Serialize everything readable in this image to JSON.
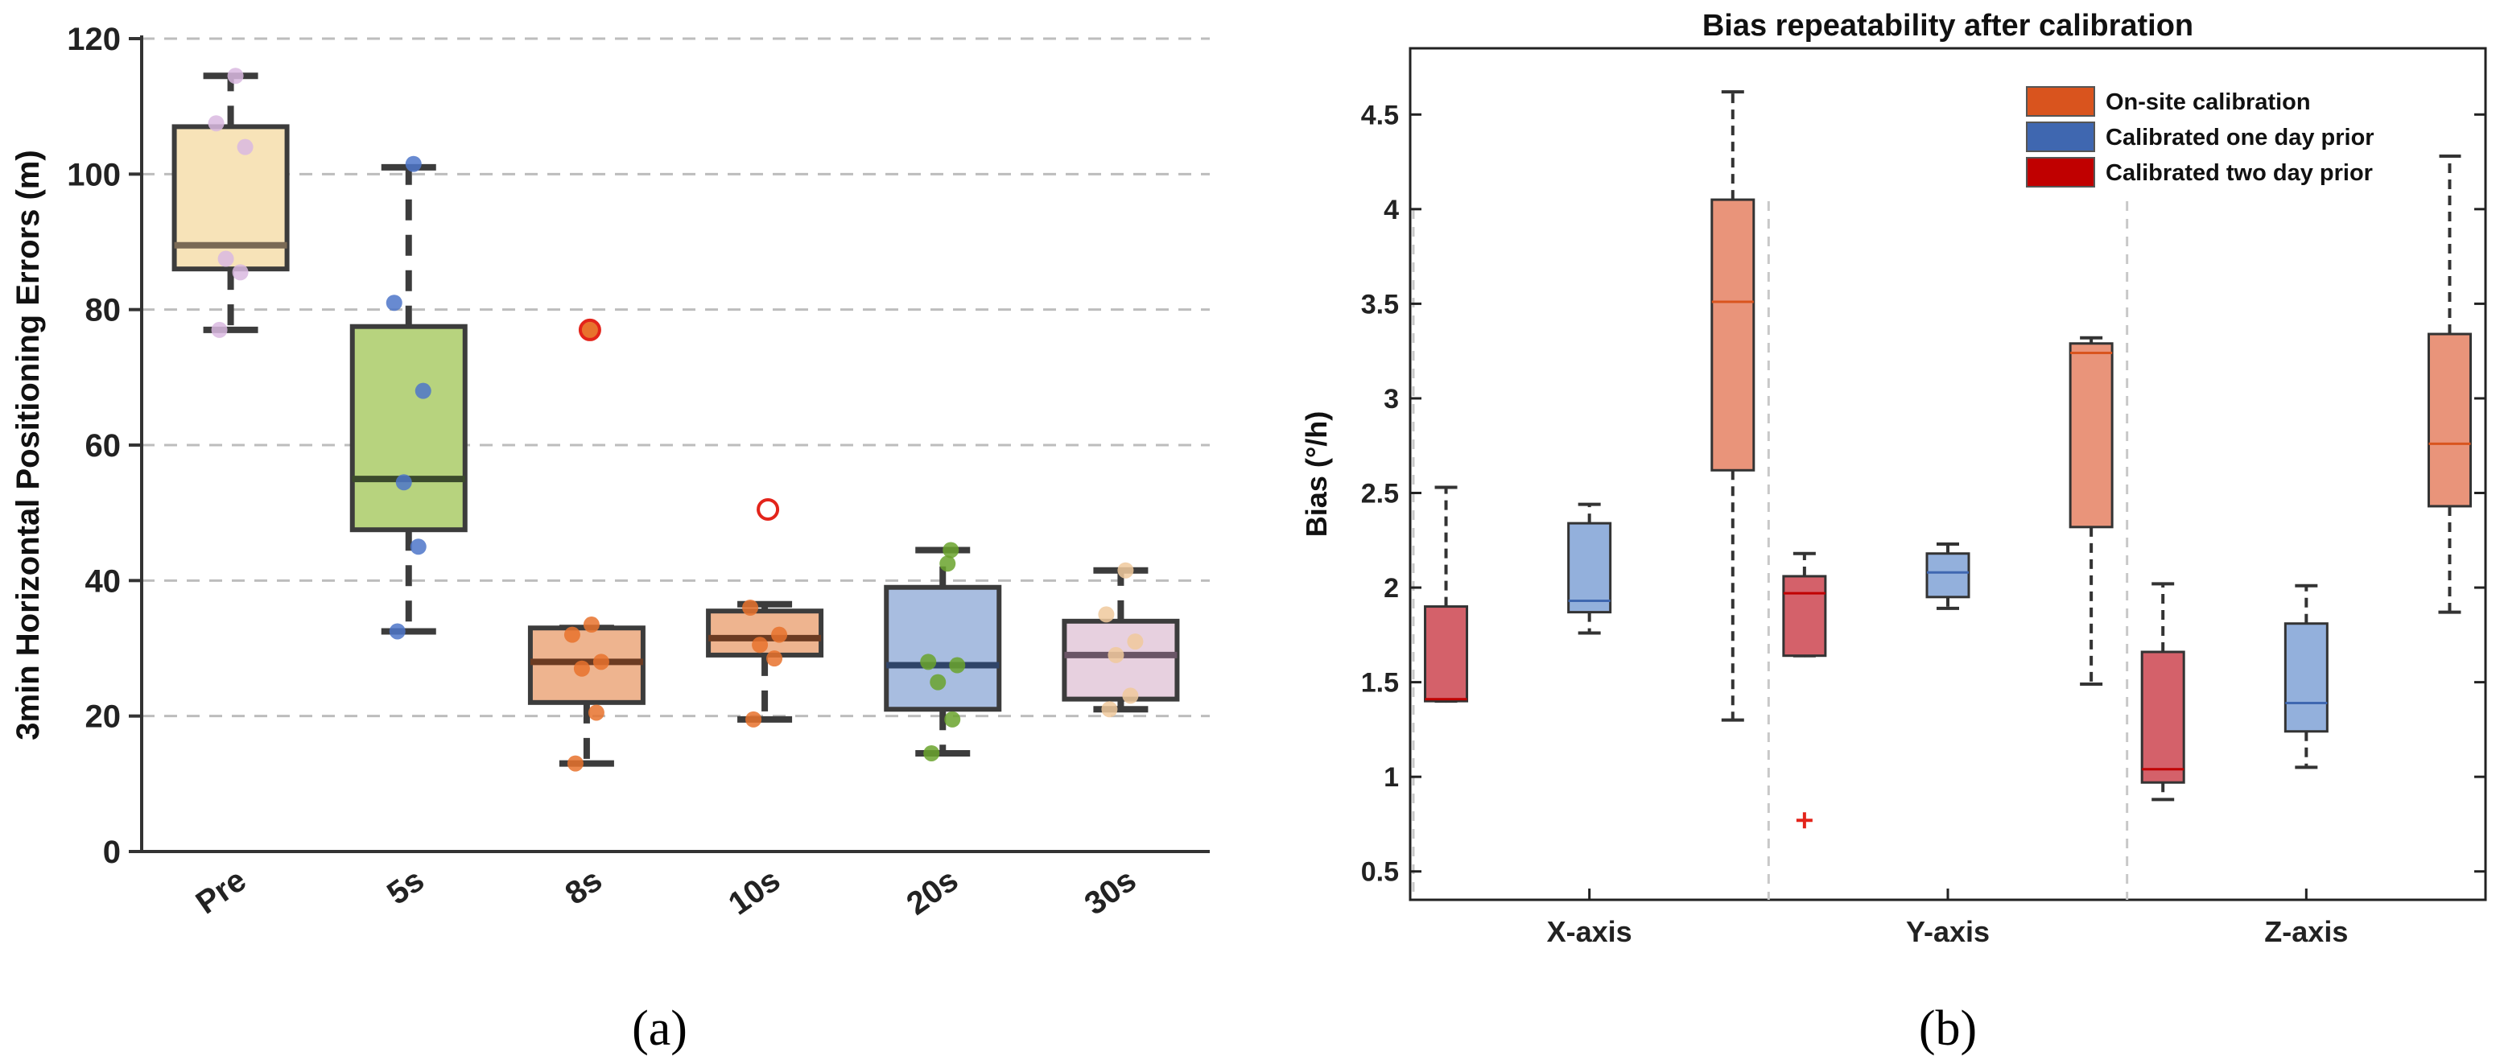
{
  "chart_data": [
    {
      "id": "a",
      "type": "box",
      "caption_text": "(a)",
      "title": "",
      "xlabel": "",
      "ylabel": "3min Horizontal Positioning Errors (m)",
      "ylim": [
        0,
        120
      ],
      "yticks": [
        0,
        20,
        40,
        60,
        80,
        100,
        120
      ],
      "grid": "horizontal dashed",
      "categories": [
        "Pre",
        "5s",
        "8s",
        "10s",
        "20s",
        "30s"
      ],
      "boxes": [
        {
          "label": "Pre",
          "fill": "#f7e3b8",
          "edge": "#3c3c3c",
          "median_color": "#7a6a55",
          "point_color": "#d9b8e0",
          "q1": 86,
          "median": 89.5,
          "q3": 107,
          "whisker_low": 77,
          "whisker_high": 114.5,
          "points": [
            77,
            85.5,
            87.5,
            104,
            107.5,
            114.5
          ],
          "outliers": []
        },
        {
          "label": "5s",
          "fill": "#b7d37e",
          "edge": "#3c3c3c",
          "median_color": "#3b4a2c",
          "point_color": "#4d75c9",
          "q1": 47.5,
          "median": 55,
          "q3": 77.5,
          "whisker_low": 32.5,
          "whisker_high": 101,
          "points": [
            32.5,
            45,
            54.5,
            68,
            81,
            101.5
          ],
          "outliers": []
        },
        {
          "label": "8s",
          "fill": "#eeb48f",
          "edge": "#3c3c3c",
          "median_color": "#6b3b22",
          "point_color": "#e8722d",
          "q1": 22,
          "median": 28,
          "q3": 33,
          "whisker_low": 13,
          "whisker_high": 33,
          "points": [
            13,
            20.5,
            27,
            28,
            32,
            33.5
          ],
          "outliers": [
            77
          ]
        },
        {
          "label": "10s",
          "fill": "#eeb48f",
          "edge": "#3c3c3c",
          "median_color": "#6b3b22",
          "point_color": "#e8722d",
          "q1": 29,
          "median": 31.5,
          "q3": 35.5,
          "whisker_low": 19.5,
          "whisker_high": 36.5,
          "points": [
            19.5,
            28.5,
            30.5,
            32,
            36
          ],
          "outliers": [
            50.5
          ]
        },
        {
          "label": "20s",
          "fill": "#a8bde0",
          "edge": "#3c3c3c",
          "median_color": "#2f4468",
          "point_color": "#6aa32d",
          "q1": 21,
          "median": 27.5,
          "q3": 39,
          "whisker_low": 14.5,
          "whisker_high": 44.5,
          "points": [
            14.5,
            19.5,
            25,
            27.5,
            28,
            42.5,
            44.5
          ],
          "outliers": []
        },
        {
          "label": "30s",
          "fill": "#e7d0df",
          "edge": "#3c3c3c",
          "median_color": "#6a5566",
          "point_color": "#f0c99c",
          "q1": 22.5,
          "median": 29,
          "q3": 34,
          "whisker_low": 21,
          "whisker_high": 41.5,
          "points": [
            21,
            23,
            29,
            31,
            35,
            41.5
          ],
          "outliers": []
        }
      ]
    },
    {
      "id": "b",
      "type": "box",
      "caption_text": "(b)",
      "title": "Bias repeatability after calibration",
      "xlabel": "",
      "ylabel": "Bias (°/h)",
      "ylim": [
        0.35,
        4.85
      ],
      "yticks": [
        0.5,
        1,
        1.5,
        2,
        2.5,
        3,
        3.5,
        4,
        4.5
      ],
      "ytick_labels": [
        "0.5",
        "1",
        "1.5",
        "2",
        "2.5",
        "3",
        "3.5",
        "4",
        "4.5"
      ],
      "categories": [
        "X-axis",
        "Y-axis",
        "Z-axis"
      ],
      "legend_position": "top-right",
      "series": [
        {
          "name": "On-site calibration",
          "color": "#d9541e",
          "fill": "#e9947a"
        },
        {
          "name": "Calibrated one day prior",
          "color": "#3f67b0",
          "fill": "#93b0dc"
        },
        {
          "name": "Calibrated two day prior",
          "color": "#c00000",
          "fill": "#d4616a"
        }
      ],
      "boxes": [
        {
          "group": "X-axis",
          "series": "Calibrated two day prior",
          "whisker_low": 1.4,
          "q1": 1.4,
          "median": 1.41,
          "q3": 1.9,
          "whisker_high": 2.53,
          "outliers": []
        },
        {
          "group": "X-axis",
          "series": "Calibrated one day prior",
          "whisker_low": 1.76,
          "q1": 1.87,
          "median": 1.93,
          "q3": 2.34,
          "whisker_high": 2.44,
          "outliers": []
        },
        {
          "group": "X-axis",
          "series": "On-site calibration",
          "whisker_low": 1.3,
          "q1": 2.62,
          "median": 3.51,
          "q3": 4.05,
          "whisker_high": 4.62,
          "outliers": []
        },
        {
          "group": "Y-axis",
          "series": "Calibrated two day prior",
          "whisker_low": 1.64,
          "q1": 1.64,
          "median": 1.97,
          "q3": 2.06,
          "whisker_high": 2.18,
          "outliers": [
            0.77
          ]
        },
        {
          "group": "Y-axis",
          "series": "Calibrated one day prior",
          "whisker_low": 1.89,
          "q1": 1.95,
          "median": 2.08,
          "q3": 2.18,
          "whisker_high": 2.23,
          "outliers": []
        },
        {
          "group": "Y-axis",
          "series": "On-site calibration",
          "whisker_low": 1.49,
          "q1": 2.32,
          "median": 3.24,
          "q3": 3.29,
          "whisker_high": 3.32,
          "outliers": []
        },
        {
          "group": "Z-axis",
          "series": "Calibrated two day prior",
          "whisker_low": 0.88,
          "q1": 0.97,
          "median": 1.04,
          "q3": 1.66,
          "whisker_high": 2.02,
          "outliers": []
        },
        {
          "group": "Z-axis",
          "series": "Calibrated one day prior",
          "whisker_low": 1.05,
          "q1": 1.24,
          "median": 1.39,
          "q3": 1.81,
          "whisker_high": 2.01,
          "outliers": []
        },
        {
          "group": "Z-axis",
          "series": "On-site calibration",
          "whisker_low": 1.87,
          "q1": 2.43,
          "median": 2.76,
          "q3": 3.34,
          "whisker_high": 4.28,
          "outliers": []
        }
      ]
    }
  ]
}
